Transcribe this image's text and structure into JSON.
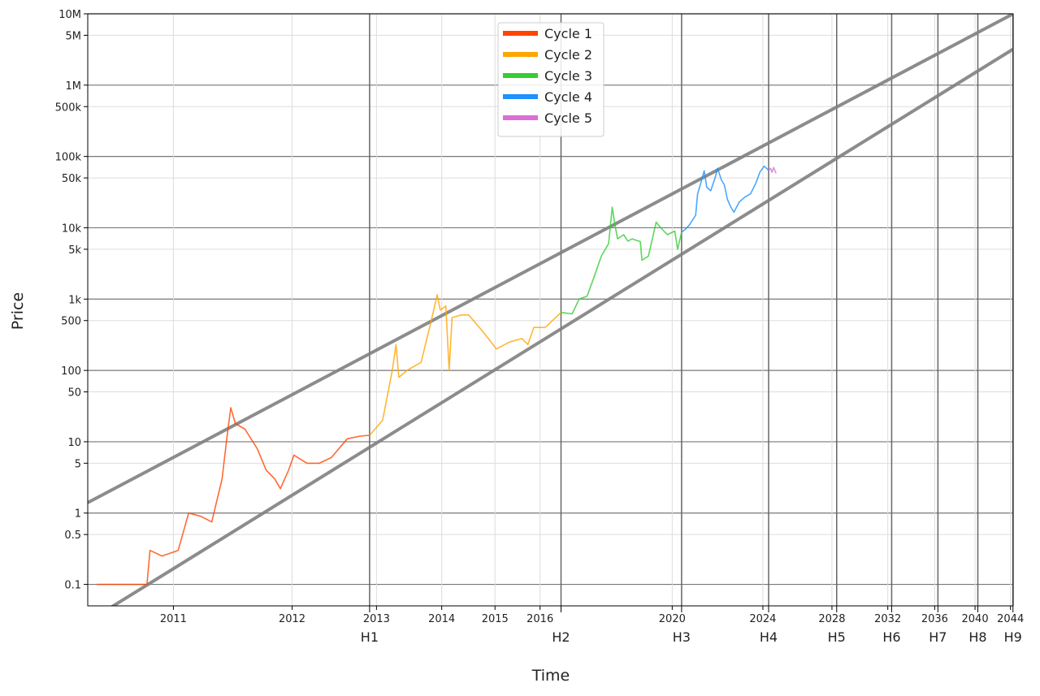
{
  "chart_data": {
    "type": "line",
    "xlabel": "Time",
    "ylabel": "Price",
    "xscale": "log",
    "yscale": "log",
    "xlim": [
      543,
      12900
    ],
    "ylim": [
      0.05,
      10000000
    ],
    "xticks": [
      {
        "value": 728,
        "label": "2011"
      },
      {
        "value": 1093,
        "label": "2012"
      },
      {
        "value": 1459,
        "label": "2013"
      },
      {
        "value": 1824,
        "label": "2014"
      },
      {
        "value": 2189,
        "label": "2015"
      },
      {
        "value": 2554,
        "label": "2016"
      },
      {
        "value": 4015,
        "label": "2020"
      },
      {
        "value": 5476,
        "label": "2024"
      },
      {
        "value": 6937,
        "label": "2028"
      },
      {
        "value": 8398,
        "label": "2032"
      },
      {
        "value": 9860,
        "label": "2036"
      },
      {
        "value": 11321,
        "label": "2040"
      },
      {
        "value": 12782,
        "label": "2044"
      }
    ],
    "halvings": [
      {
        "value": 1425,
        "label": "H1"
      },
      {
        "value": 2744,
        "label": "H2"
      },
      {
        "value": 4146,
        "label": "H3"
      },
      {
        "value": 5585,
        "label": "H4"
      },
      {
        "value": 7050,
        "label": "H5"
      },
      {
        "value": 8510,
        "label": "H6"
      },
      {
        "value": 9970,
        "label": "H7"
      },
      {
        "value": 11430,
        "label": "H8"
      },
      {
        "value": 12890,
        "label": "H9"
      }
    ],
    "yticks": [
      0.1,
      0.5,
      1,
      5,
      10,
      50,
      100,
      500,
      {
        "value": 1000,
        "label": "1k"
      },
      {
        "value": 5000,
        "label": "5k"
      },
      {
        "value": 10000,
        "label": "10k"
      },
      {
        "value": 50000,
        "label": "50k"
      },
      {
        "value": 100000,
        "label": "100k"
      },
      {
        "value": 500000,
        "label": "500k"
      },
      {
        "value": 1000000,
        "label": "1M"
      },
      {
        "value": 5000000,
        "label": "5M"
      },
      {
        "value": 10000000,
        "label": "10M"
      }
    ],
    "grid": true,
    "legend": "upper center",
    "trend_lines": [
      {
        "color": "#808080",
        "x": [
          543,
          12900
        ],
        "values": [
          1.4,
          10000000
        ]
      },
      {
        "color": "#808080",
        "x": [
          543,
          12900
        ],
        "values": [
          0.03,
          3200000
        ]
      }
    ],
    "series": [
      {
        "name": "Cycle 1",
        "color": "#ff4500",
        "x": [
          560,
          620,
          665,
          672,
          700,
          740,
          767,
          800,
          830,
          860,
          875,
          886,
          900,
          930,
          970,
          1000,
          1030,
          1050,
          1080,
          1100,
          1150,
          1200,
          1250,
          1320,
          1380,
          1425
        ],
        "values": [
          0.1,
          0.1,
          0.1,
          0.3,
          0.25,
          0.3,
          1.0,
          0.9,
          0.75,
          3,
          12,
          30,
          18,
          15,
          8,
          4,
          3,
          2.2,
          4,
          6.5,
          5,
          5,
          6,
          11,
          12,
          12.3
        ]
      },
      {
        "name": "Cycle 2",
        "color": "#ffa500",
        "x": [
          1425,
          1490,
          1540,
          1560,
          1575,
          1620,
          1700,
          1760,
          1796,
          1815,
          1850,
          1871,
          1890,
          1950,
          2000,
          2100,
          2200,
          2300,
          2400,
          2450,
          2500,
          2600,
          2744
        ],
        "values": [
          12.3,
          20,
          100,
          230,
          80,
          100,
          130,
          500,
          1150,
          700,
          800,
          100,
          550,
          600,
          600,
          350,
          200,
          250,
          280,
          230,
          400,
          400,
          650
        ]
      },
      {
        "name": "Cycle 3",
        "color": "#32cd32",
        "x": [
          2744,
          2850,
          2920,
          3000,
          3070,
          3150,
          3230,
          3270,
          3300,
          3330,
          3400,
          3450,
          3500,
          3600,
          3620,
          3700,
          3800,
          3860,
          3950,
          4050,
          4090,
          4146
        ],
        "values": [
          650,
          620,
          1000,
          1100,
          2000,
          4000,
          6000,
          19500,
          11000,
          7000,
          8000,
          6500,
          7000,
          6400,
          3500,
          4000,
          12000,
          10000,
          8000,
          9000,
          5000,
          8700
        ]
      },
      {
        "name": "Cycle 4",
        "color": "#1e90ff",
        "x": [
          4146,
          4200,
          4260,
          4350,
          4380,
          4420,
          4480,
          4520,
          4580,
          4650,
          4690,
          4750,
          4800,
          4850,
          4900,
          4960,
          5050,
          5150,
          5250,
          5350,
          5420,
          5500,
          5585
        ],
        "values": [
          8700,
          9500,
          11000,
          15000,
          30000,
          40000,
          63000,
          37000,
          33000,
          50000,
          68000,
          47000,
          40000,
          25000,
          20000,
          16500,
          23000,
          27000,
          30000,
          43000,
          60000,
          73000,
          64000
        ]
      },
      {
        "name": "Cycle 5",
        "color": "#da70d6",
        "x": [
          5585,
          5620,
          5650,
          5680,
          5730
        ],
        "values": [
          64000,
          68000,
          60000,
          70000,
          58000
        ]
      }
    ]
  }
}
